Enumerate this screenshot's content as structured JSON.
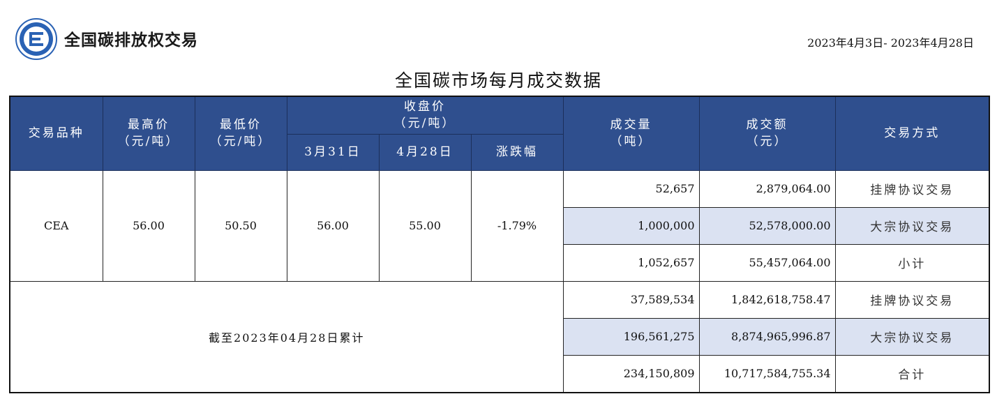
{
  "header": {
    "brand": "全国碳排放权交易",
    "date_range": "2023年4月3日- 2023年4月28日",
    "title": "全国碳市场每月成交数据"
  },
  "columns": {
    "product": "交易品种",
    "high": "最高价",
    "high_unit": "（元/吨）",
    "low": "最低价",
    "low_unit": "（元/吨）",
    "close": "收盘价",
    "close_unit": "（元/吨）",
    "mar31": "3月31日",
    "apr28": "4月28日",
    "change": "涨跌幅",
    "volume": "成交量",
    "volume_unit": "（吨）",
    "amount": "成交额",
    "amount_unit": "（元）",
    "method": "交易方式"
  },
  "monthly": {
    "product": "CEA",
    "high": "56.00",
    "low": "50.50",
    "close_mar31": "56.00",
    "close_apr28": "55.00",
    "change": "-1.79%",
    "rows": [
      {
        "volume": "52,657",
        "amount": "2,879,064.00",
        "method": "挂牌协议交易"
      },
      {
        "volume": "1,000,000",
        "amount": "52,578,000.00",
        "method": "大宗协议交易"
      },
      {
        "volume": "1,052,657",
        "amount": "55,457,064.00",
        "method": "小计"
      }
    ]
  },
  "cumulative": {
    "label": "截至2023年04月28日累计",
    "rows": [
      {
        "volume": "37,589,534",
        "amount": "1,842,618,758.47",
        "method": "挂牌协议交易"
      },
      {
        "volume": "196,561,275",
        "amount": "8,874,965,996.87",
        "method": "大宗协议交易"
      },
      {
        "volume": "234,150,809",
        "amount": "10,717,584,755.34",
        "method": "合计"
      }
    ]
  },
  "colors": {
    "header_bg": "#2f4f8e",
    "header_text": "#ffffff",
    "shade_row": "#dbe2f2",
    "logo_blue": "#2a62b4"
  },
  "icons": {
    "logo": "ets-logo-icon"
  }
}
